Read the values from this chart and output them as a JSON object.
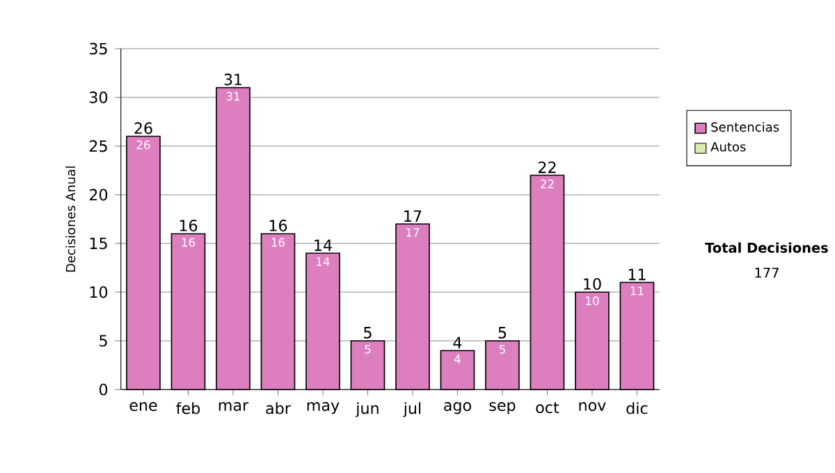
{
  "chart_data": {
    "type": "bar",
    "ylabel": "Decisiones Anual",
    "categories": [
      "ene",
      "feb",
      "mar",
      "abr",
      "may",
      "jun",
      "jul",
      "ago",
      "sep",
      "oct",
      "nov",
      "dic"
    ],
    "series": [
      {
        "name": "Sentencias",
        "color": "#dd7fbf",
        "values": [
          26,
          16,
          31,
          16,
          14,
          5,
          17,
          4,
          5,
          22,
          10,
          11
        ],
        "value_labels": [
          "26",
          "16",
          "31",
          "16",
          "14",
          "5",
          "17",
          "4",
          "5",
          "22",
          "10",
          "11"
        ]
      },
      {
        "name": "Autos",
        "color": "#d9ecb0",
        "values": [
          null,
          null,
          null,
          null,
          null,
          null,
          null,
          null,
          null,
          null,
          null,
          null
        ]
      }
    ],
    "totals": [
      "26",
      "16",
      "31",
      "16",
      "14",
      "5",
      "17",
      "4",
      "5",
      "22",
      "10",
      "11"
    ],
    "ylim": [
      0,
      35
    ],
    "yticks": [
      0,
      5,
      10,
      15,
      20,
      25,
      30,
      35
    ],
    "grid": "y",
    "legend": "right",
    "annotations": [
      "Total Decisiones",
      "177"
    ]
  }
}
